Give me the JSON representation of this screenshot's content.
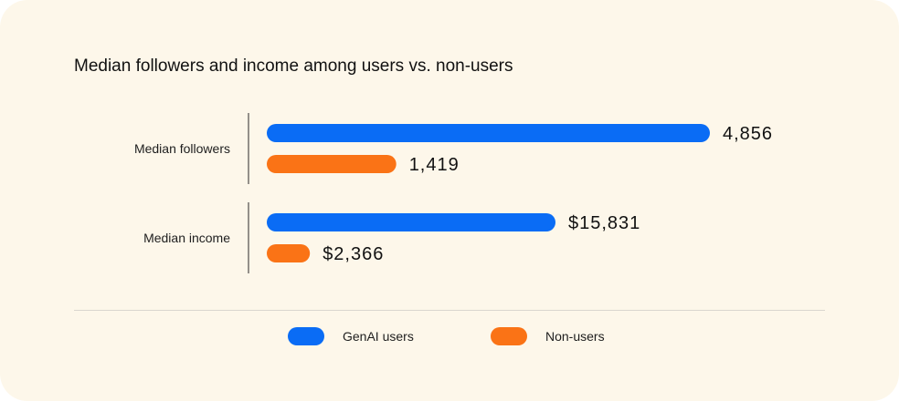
{
  "chart_data": {
    "type": "bar",
    "orientation": "horizontal",
    "title": "Median followers and income among users vs. non-users",
    "categories": [
      "Median followers",
      "Median income"
    ],
    "series": [
      {
        "name": "GenAI users",
        "color": "#0a6cf5",
        "values": [
          4856,
          15831
        ],
        "labels": [
          "4,856",
          "$15,831"
        ]
      },
      {
        "name": "Non-users",
        "color": "#fa7316",
        "values": [
          1419,
          2366
        ],
        "labels": [
          "1,419",
          "$2,366"
        ]
      }
    ],
    "scale": "independent per category",
    "grid": false,
    "legend": "bottom"
  }
}
